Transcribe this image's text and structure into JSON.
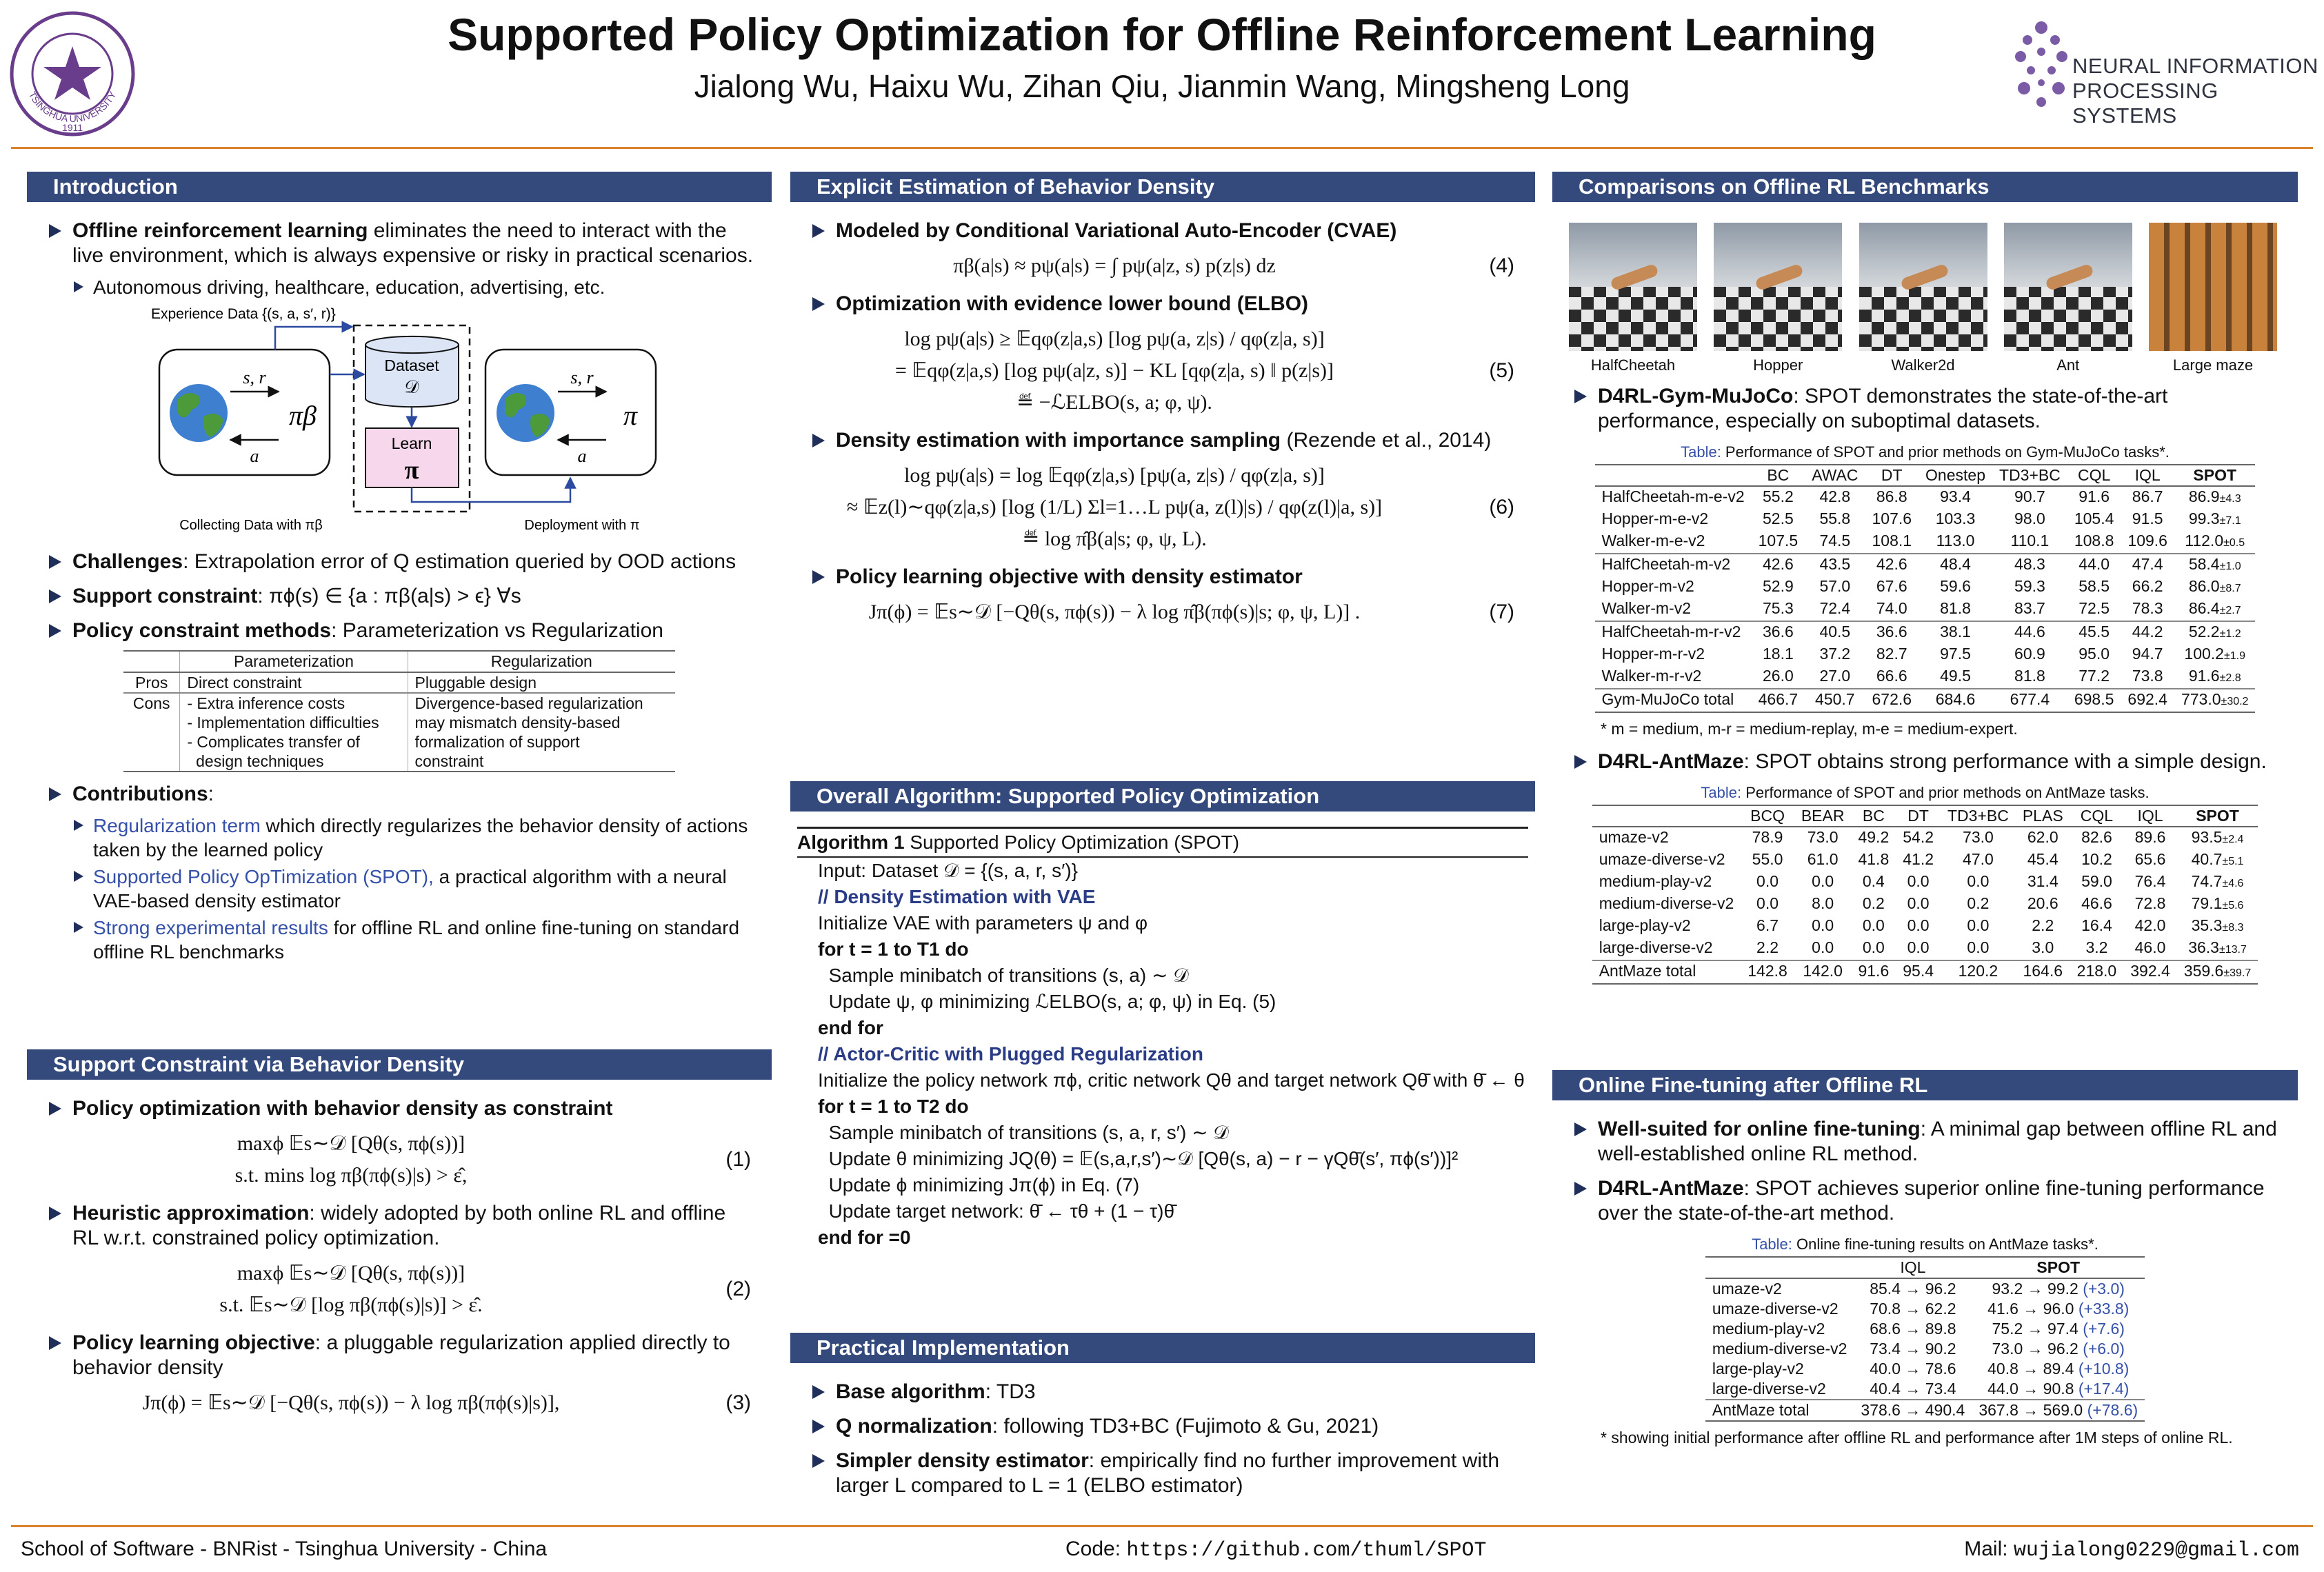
{
  "header": {
    "title": "Supported Policy Optimization for Offline Reinforcement Learning",
    "authors": "Jialong Wu, Haixu Wu, Zihan Qiu, Jianmin Wang, Mingsheng Long",
    "seal_text": "TSINGHUA UNIVERSITY",
    "seal_year": "1911",
    "logo_lines": [
      "NEURAL INFORMATION",
      "PROCESSING SYSTEMS"
    ]
  },
  "sections": [
    {
      "title": "Introduction",
      "blocks": [
        {
          "bullet": "Offline reinforcement learning",
          "text": " eliminates the need to interact with the live environment, which is always expensive or risky in practical scenarios."
        },
        {
          "sub": "Autonomous driving, healthcare, education, advertising, etc."
        },
        {
          "diagram": {
            "experience": "Experience Data {(s, a, s′, r)}",
            "env_left_top": "s, r",
            "env_left_bottom": "a",
            "policy_beta": "πβ",
            "dataset": "Dataset",
            "dataset_symbol": "𝒟",
            "learn": "Learn",
            "learn_symbol": "π",
            "env_right_top": "s, r",
            "env_right_bottom": "a",
            "policy": "π",
            "caption_left": "Collecting Data with πβ",
            "caption_right": "Deployment with π"
          }
        },
        {
          "bullet": "Challenges",
          "text": ": Extrapolation error of Q estimation queried by OOD actions"
        },
        {
          "bullet": "Support constraint",
          "text": ": πϕ(s) ∈ {a : πβ(a|s) > ϵ}   ∀s"
        },
        {
          "bullet": "Policy constraint methods",
          "text": ": Parameterization vs Regularization"
        },
        {
          "table": {
            "header": [
              "Parameterization",
              "Regularization"
            ],
            "groups": [
              [
                [
                  "Pros",
                  [
                    "Direct constraint"
                  ],
                  [
                    "Pluggable design"
                  ]
                ]
              ],
              [
                [
                  "Cons",
                  [
                    "- Extra inference costs",
                    "- Implementation difficulties",
                    "- Complicates transfer of",
                    "  design techniques"
                  ],
                  [
                    "Divergence-based regularization",
                    "may mismatch density-based",
                    "formalization of support",
                    "constraint"
                  ]
                ]
              ]
            ]
          }
        },
        {
          "bullet": "Contributions",
          "text": ":"
        },
        {
          "sub_link": "Regularization term",
          "sub": " which directly regularizes the behavior density of actions taken by the learned policy"
        },
        {
          "sub_link": "Supported Policy OpTimization (SPOT),",
          "sub": " a practical algorithm with a neural VAE-based density estimator"
        },
        {
          "sub_link": "Strong experimental results",
          "sub": " for offline RL and online fine-tuning on standard offline RL benchmarks"
        }
      ]
    },
    {
      "title": "Support Constraint via Behavior Density",
      "blocks": [
        {
          "bullet": "Policy optimization with behavior density as constraint"
        },
        {
          "eq": [
            "maxϕ 𝔼s∼𝒟 [Qθ(s, πϕ(s))]",
            "s.t. mins log πβ(πϕ(s)|s) > ε̂,"
          ],
          "num": "(1)"
        },
        {
          "bullet": "Heuristic approximation",
          "text": ": widely adopted by both online RL and offline RL w.r.t. constrained policy optimization."
        },
        {
          "eq": [
            "maxϕ 𝔼s∼𝒟 [Qθ(s, πϕ(s))]",
            "s.t. 𝔼s∼𝒟 [log πβ(πϕ(s)|s)] > ε̂."
          ],
          "num": "(2)"
        },
        {
          "bullet": "Policy learning objective",
          "text": ": a pluggable regularization applied directly to behavior density"
        },
        {
          "eq": [
            "Jπ(ϕ) = 𝔼s∼𝒟 [−Qθ(s, πϕ(s)) − λ log πβ(πϕ(s)|s)],"
          ],
          "num": "(3)"
        }
      ]
    },
    {
      "title": "Explicit Estimation of Behavior Density",
      "blocks": [
        {
          "bullet": "Modeled by Conditional Variational Auto-Encoder (CVAE)"
        },
        {
          "eq": [
            "πβ(a|s) ≈ pψ(a|s) = ∫ pψ(a|z, s) p(z|s) dz"
          ],
          "num": "(4)"
        },
        {
          "bullet": "Optimization with evidence lower bound (ELBO)"
        },
        {
          "eq": [
            "log pψ(a|s) ≥ 𝔼qφ(z|a,s) [log pψ(a, z|s) / qφ(z|a, s)]",
            "= 𝔼qφ(z|a,s) [log pψ(a|z, s)] − KL [qφ(z|a, s) ‖ p(z|s)]",
            "≝ −ℒELBO(s, a; φ, ψ)."
          ],
          "num": "(5)"
        },
        {
          "bullet": "Density estimation with importance sampling",
          "text": " (Rezende et al., 2014)"
        },
        {
          "eq": [
            "log pψ(a|s) = log 𝔼qφ(z|a,s) [pψ(a, z|s) / qφ(z|a, s)]",
            "≈ 𝔼z(l)∼qφ(z|a,s) [log (1/L) Σl=1…L pψ(a, z(l)|s) / qφ(z(l)|a, s)]",
            "≝ log π̂β(a|s; φ, ψ, L)."
          ],
          "num": "(6)"
        },
        {
          "bullet": "Policy learning objective with density estimator"
        },
        {
          "eq": [
            "Jπ(ϕ) = 𝔼s∼𝒟 [−Qθ(s, πϕ(s)) − λ log π̂β(πϕ(s)|s; φ, ψ, L)] ."
          ],
          "num": "(7)"
        }
      ]
    },
    {
      "title": "Overall Algorithm: Supported Policy Optimization",
      "blocks": [
        {
          "alg_title_bold": "Algorithm 1",
          "alg_title": " Supported Policy Optimization (SPOT)",
          "lines": [
            "Input: Dataset 𝒟 = {(s, a, r, s′)}",
            "// Density Estimation with VAE",
            "Initialize VAE with parameters ψ and φ",
            "for t = 1 to T1 do",
            "  Sample minibatch of transitions (s, a) ∼ 𝒟",
            "  Update ψ, φ minimizing ℒELBO(s, a; φ, ψ) in Eq. (5)",
            "end for",
            "// Actor-Critic with Plugged Regularization",
            "Initialize the policy network πϕ, critic network Qθ and target network Qθ̄ with θ̄ ← θ",
            "for t = 1 to T2 do",
            "  Sample minibatch of transitions (s, a, r, s′) ∼ 𝒟",
            "  Update θ minimizing JQ(θ) = 𝔼(s,a,r,s′)∼𝒟 [Qθ(s, a) − r − γQθ̄(s′, πϕ(s′))]²",
            "  Update ϕ minimizing Jπ(ϕ) in Eq. (7)",
            "  Update target network: θ̄ ← τθ + (1 − τ)θ̄",
            "end for =0"
          ]
        }
      ]
    },
    {
      "title": "Practical Implementation",
      "blocks": [
        {
          "bullet": "Base algorithm",
          "text": ": TD3"
        },
        {
          "bullet": "Q normalization",
          "text": ": following TD3+BC (Fujimoto & Gu, 2021)"
        },
        {
          "bullet": "Simpler density estimator",
          "text": ": empirically find no further improvement with larger L compared to L = 1 (ELBO estimator)"
        }
      ]
    },
    {
      "title": "Comparisons on Offline RL Benchmarks",
      "blocks": [
        {
          "figures": [
            "HalfCheetah",
            "Hopper",
            "Walker2d",
            "Ant",
            "Large maze"
          ]
        },
        {
          "bullet": "D4RL-Gym-MuJoCo",
          "text": ": SPOT demonstrates the state-of-the-art performance, especially on suboptimal datasets."
        },
        {
          "table": {
            "caption_label": "Table:",
            "caption": " Performance of SPOT and prior methods on Gym-MuJoCo tasks*.",
            "header": [
              "BC",
              "AWAC",
              "DT",
              "Onestep",
              "TD3+BC",
              "CQL",
              "IQL",
              "SPOT"
            ],
            "groups": [
              [
                [
                  "HalfCheetah-m-e-v2",
                  "55.2",
                  "42.8",
                  "86.8",
                  "93.4",
                  "90.7",
                  "91.6",
                  "86.7",
                  {
                    "v": "86.9",
                    "pm": "±4.3"
                  }
                ],
                [
                  "Hopper-m-e-v2",
                  "52.5",
                  "55.8",
                  "107.6",
                  "103.3",
                  "98.0",
                  "105.4",
                  "91.5",
                  {
                    "v": "99.3",
                    "pm": "±7.1"
                  }
                ],
                [
                  "Walker-m-e-v2",
                  "107.5",
                  "74.5",
                  "108.1",
                  "113.0",
                  "110.1",
                  "108.8",
                  "109.6",
                  {
                    "v": "112.0",
                    "pm": "±0.5"
                  }
                ]
              ],
              [
                [
                  "HalfCheetah-m-v2",
                  "42.6",
                  "43.5",
                  "42.6",
                  "48.4",
                  "48.3",
                  "44.0",
                  "47.4",
                  {
                    "v": "58.4",
                    "pm": "±1.0"
                  }
                ],
                [
                  "Hopper-m-v2",
                  "52.9",
                  "57.0",
                  "67.6",
                  "59.6",
                  "59.3",
                  "58.5",
                  "66.2",
                  {
                    "v": "86.0",
                    "pm": "±8.7"
                  }
                ],
                [
                  "Walker-m-v2",
                  "75.3",
                  "72.4",
                  "74.0",
                  "81.8",
                  "83.7",
                  "72.5",
                  "78.3",
                  {
                    "v": "86.4",
                    "pm": "±2.7"
                  }
                ]
              ],
              [
                [
                  "HalfCheetah-m-r-v2",
                  "36.6",
                  "40.5",
                  "36.6",
                  "38.1",
                  "44.6",
                  "45.5",
                  "44.2",
                  {
                    "v": "52.2",
                    "pm": "±1.2"
                  }
                ],
                [
                  "Hopper-m-r-v2",
                  "18.1",
                  "37.2",
                  "82.7",
                  "97.5",
                  "60.9",
                  "95.0",
                  "94.7",
                  {
                    "v": "100.2",
                    "pm": "±1.9"
                  }
                ],
                [
                  "Walker-m-r-v2",
                  "26.0",
                  "27.0",
                  "66.6",
                  "49.5",
                  "81.8",
                  "77.2",
                  "73.8",
                  {
                    "v": "91.6",
                    "pm": "±2.8"
                  }
                ]
              ],
              [
                [
                  "Gym-MuJoCo total",
                  "466.7",
                  "450.7",
                  "672.6",
                  "684.6",
                  "677.4",
                  "698.5",
                  "692.4",
                  {
                    "v": "773.0",
                    "pm": "±30.2"
                  }
                ]
              ]
            ]
          }
        },
        {
          "note": "* m = medium, m-r = medium-replay, m-e = medium-expert."
        },
        {
          "bullet": "D4RL-AntMaze",
          "text": ": SPOT obtains strong performance with a simple design."
        },
        {
          "table": {
            "caption_label": "Table:",
            "caption": " Performance of SPOT and prior methods on AntMaze tasks.",
            "header": [
              "BCQ",
              "BEAR",
              "BC",
              "DT",
              "TD3+BC",
              "PLAS",
              "CQL",
              "IQL",
              "SPOT"
            ],
            "groups": [
              [
                [
                  "umaze-v2",
                  "78.9",
                  "73.0",
                  "49.2",
                  "54.2",
                  "73.0",
                  "62.0",
                  "82.6",
                  "89.6",
                  {
                    "v": "93.5",
                    "pm": "±2.4"
                  }
                ],
                [
                  "umaze-diverse-v2",
                  "55.0",
                  "61.0",
                  "41.8",
                  "41.2",
                  "47.0",
                  "45.4",
                  "10.2",
                  "65.6",
                  {
                    "v": "40.7",
                    "pm": "±5.1"
                  }
                ],
                [
                  "medium-play-v2",
                  "0.0",
                  "0.0",
                  "0.4",
                  "0.0",
                  "0.0",
                  "31.4",
                  "59.0",
                  "76.4",
                  {
                    "v": "74.7",
                    "pm": "±4.6"
                  }
                ],
                [
                  "medium-diverse-v2",
                  "0.0",
                  "8.0",
                  "0.2",
                  "0.0",
                  "0.2",
                  "20.6",
                  "46.6",
                  "72.8",
                  {
                    "v": "79.1",
                    "pm": "±5.6"
                  }
                ],
                [
                  "large-play-v2",
                  "6.7",
                  "0.0",
                  "0.0",
                  "0.0",
                  "0.0",
                  "2.2",
                  "16.4",
                  "42.0",
                  {
                    "v": "35.3",
                    "pm": "±8.3"
                  }
                ],
                [
                  "large-diverse-v2",
                  "2.2",
                  "0.0",
                  "0.0",
                  "0.0",
                  "0.0",
                  "3.0",
                  "3.2",
                  "46.0",
                  {
                    "v": "36.3",
                    "pm": "±13.7"
                  }
                ]
              ],
              [
                [
                  "AntMaze total",
                  "142.8",
                  "142.0",
                  "91.6",
                  "95.4",
                  "120.2",
                  "164.6",
                  "218.0",
                  "392.4",
                  {
                    "v": "359.6",
                    "pm": "±39.7"
                  }
                ]
              ]
            ]
          }
        }
      ]
    },
    {
      "title": "Online Fine-tuning after Offline RL",
      "blocks": [
        {
          "bullet": "Well-suited for online fine-tuning",
          "text": ": A minimal gap between offline RL and well-established online RL method."
        },
        {
          "bullet": "D4RL-AntMaze",
          "text": ": SPOT achieves superior online fine-tuning performance over the state-of-the-art method."
        },
        {
          "table": {
            "caption_label": "Table:",
            "caption": " Online fine-tuning results on AntMaze tasks*.",
            "header": [
              "IQL",
              "SPOT"
            ],
            "groups": [
              [
                [
                  "umaze-v2",
                  "85.4 → 96.2",
                  {
                    "v": "93.2 → 99.2 ",
                    "gain": "(+3.0)"
                  }
                ],
                [
                  "umaze-diverse-v2",
                  "70.8 → 62.2",
                  {
                    "v": "41.6 → 96.0 ",
                    "gain": "(+33.8)"
                  }
                ],
                [
                  "medium-play-v2",
                  "68.6 → 89.8",
                  {
                    "v": "75.2 → 97.4 ",
                    "gain": "(+7.6)"
                  }
                ],
                [
                  "medium-diverse-v2",
                  "73.4 → 90.2",
                  {
                    "v": "73.0 → 96.2 ",
                    "gain": "(+6.0)"
                  }
                ],
                [
                  "large-play-v2",
                  "40.0 → 78.6",
                  {
                    "v": "40.8 → 89.4 ",
                    "gain": "(+10.8)"
                  }
                ],
                [
                  "large-diverse-v2",
                  "40.4 → 73.4",
                  {
                    "v": "44.0 → 90.8 ",
                    "gain": "(+17.4)"
                  }
                ]
              ],
              [
                [
                  "AntMaze total",
                  "378.6 → 490.4",
                  {
                    "v": "367.8 → 569.0 ",
                    "gain": "(+78.6)"
                  }
                ]
              ]
            ]
          }
        },
        {
          "note": "* showing initial performance after offline RL and performance after 1M steps of online RL."
        }
      ]
    }
  ],
  "footer": {
    "left": "School of Software - BNRist - Tsinghua University - China",
    "code_label": "Code:",
    "code": "https://github.com/thuml/SPOT",
    "mail_label": "Mail:",
    "mail": "wujialong0229@gmail.com"
  }
}
